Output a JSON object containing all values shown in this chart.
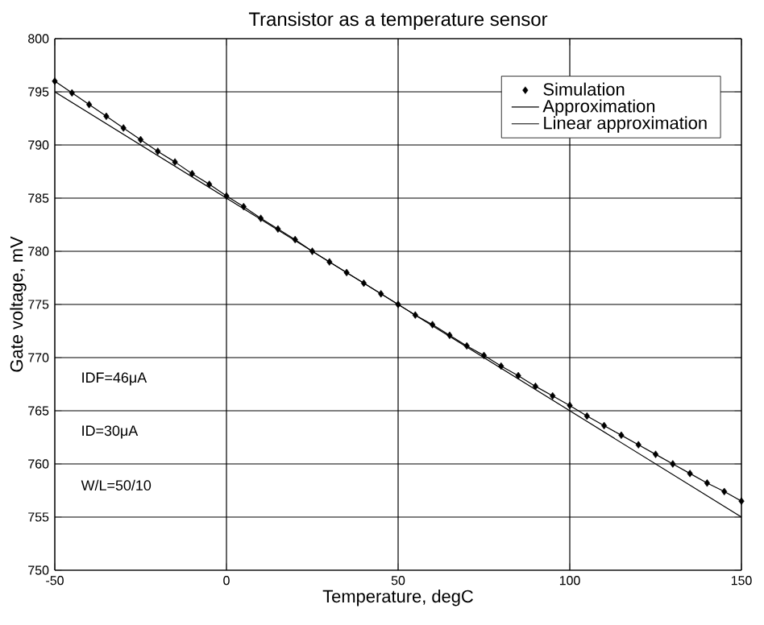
{
  "chart_data": {
    "type": "line",
    "title": "Transistor as a temperature sensor",
    "xlabel": "Temperature, degC",
    "ylabel": "Gate voltage, mV",
    "xlim": [
      -50,
      150
    ],
    "ylim": [
      750,
      800
    ],
    "xticks": [
      -50,
      0,
      50,
      100,
      150
    ],
    "yticks": [
      750,
      755,
      760,
      765,
      770,
      775,
      780,
      785,
      790,
      795,
      800
    ],
    "grid": true,
    "legend": "top right",
    "annotations": [
      "IDF=46μA",
      "ID=30μA",
      "W/L=50/10"
    ],
    "x": [
      -50,
      -45,
      -40,
      -35,
      -30,
      -25,
      -20,
      -15,
      -10,
      -5,
      0,
      5,
      10,
      15,
      20,
      25,
      30,
      35,
      40,
      45,
      50,
      55,
      60,
      65,
      70,
      75,
      80,
      85,
      90,
      95,
      100,
      105,
      110,
      115,
      120,
      125,
      130,
      135,
      140,
      145,
      150
    ],
    "series": [
      {
        "name": "Simulation",
        "type": "scatter",
        "marker": "diamond",
        "color": "#000000",
        "values": [
          796.0,
          794.9,
          793.8,
          792.7,
          791.6,
          790.5,
          789.4,
          788.4,
          787.3,
          786.3,
          785.2,
          784.2,
          783.1,
          782.1,
          781.1,
          780.0,
          779.0,
          778.0,
          777.0,
          776.0,
          775.0,
          774.0,
          773.1,
          772.1,
          771.1,
          770.2,
          769.2,
          768.3,
          767.3,
          766.4,
          765.5,
          764.5,
          763.6,
          762.7,
          761.8,
          760.9,
          760.0,
          759.1,
          758.2,
          757.4,
          756.5
        ]
      },
      {
        "name": "Approximation",
        "type": "line",
        "marker": "none",
        "line_style": "solid",
        "color": "#000000",
        "values": [
          796.0,
          794.9,
          793.8,
          792.7,
          791.6,
          790.5,
          789.4,
          788.4,
          787.3,
          786.3,
          785.2,
          784.2,
          783.1,
          782.1,
          781.1,
          780.0,
          779.0,
          778.0,
          777.0,
          776.0,
          775.0,
          774.0,
          773.1,
          772.1,
          771.1,
          770.2,
          769.2,
          768.3,
          767.3,
          766.4,
          765.5,
          764.5,
          763.6,
          762.7,
          761.8,
          760.9,
          760.0,
          759.1,
          758.2,
          757.4,
          756.5
        ]
      },
      {
        "name": "Linear approximation",
        "type": "line",
        "marker": "none",
        "line_style": "solid",
        "color": "#000000",
        "x": [
          -50,
          150
        ],
        "values": [
          795,
          755
        ]
      }
    ]
  }
}
